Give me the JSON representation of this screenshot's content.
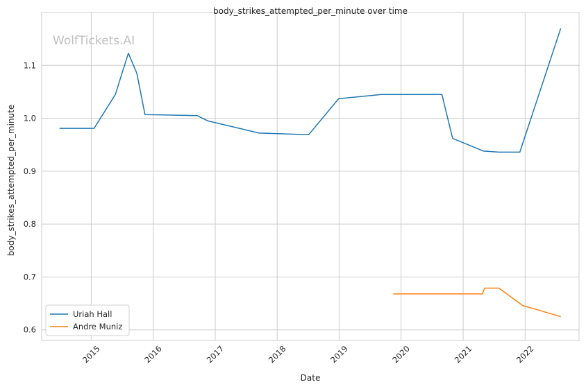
{
  "chart_data": {
    "type": "line",
    "title": "body_strikes_attempted_per_minute over time",
    "xlabel": "Date",
    "ylabel": "body_strikes_attempted_per_minute",
    "watermark": "WolfTickets.AI",
    "grid": true,
    "legend_position": "lower-left",
    "xlim": [
      "2014-03-15",
      "2022-11-15"
    ],
    "ylim": [
      0.58,
      1.2
    ],
    "x_ticks": [
      {
        "date": "2015-01-01",
        "label": "2015"
      },
      {
        "date": "2016-01-01",
        "label": "2016"
      },
      {
        "date": "2017-01-01",
        "label": "2017"
      },
      {
        "date": "2018-01-01",
        "label": "2018"
      },
      {
        "date": "2019-01-01",
        "label": "2019"
      },
      {
        "date": "2020-01-01",
        "label": "2020"
      },
      {
        "date": "2021-01-01",
        "label": "2021"
      },
      {
        "date": "2022-01-01",
        "label": "2022"
      }
    ],
    "y_ticks": [
      {
        "value": 0.6,
        "label": "0.6"
      },
      {
        "value": 0.7,
        "label": "0.7"
      },
      {
        "value": 0.8,
        "label": "0.8"
      },
      {
        "value": 0.9,
        "label": "0.9"
      },
      {
        "value": 1.0,
        "label": "1.0"
      },
      {
        "value": 1.1,
        "label": "1.1"
      }
    ],
    "series": [
      {
        "name": "Uriah Hall",
        "color": "#1f77b4",
        "points": [
          {
            "x": "2014-06-28",
            "y": 0.981
          },
          {
            "x": "2015-01-18",
            "y": 0.981
          },
          {
            "x": "2015-05-23",
            "y": 1.045
          },
          {
            "x": "2015-08-08",
            "y": 1.123
          },
          {
            "x": "2015-09-27",
            "y": 1.085
          },
          {
            "x": "2015-11-14",
            "y": 1.007
          },
          {
            "x": "2016-09-17",
            "y": 1.005
          },
          {
            "x": "2016-11-19",
            "y": 0.995
          },
          {
            "x": "2017-09-16",
            "y": 0.972
          },
          {
            "x": "2018-07-06",
            "y": 0.969
          },
          {
            "x": "2018-12-29",
            "y": 1.037
          },
          {
            "x": "2019-09-07",
            "y": 1.045
          },
          {
            "x": "2020-08-29",
            "y": 1.045
          },
          {
            "x": "2020-10-31",
            "y": 0.962
          },
          {
            "x": "2021-05-01",
            "y": 0.938
          },
          {
            "x": "2021-07-31",
            "y": 0.936
          },
          {
            "x": "2021-12-01",
            "y": 0.936
          },
          {
            "x": "2022-07-30",
            "y": 1.17
          }
        ]
      },
      {
        "name": "Andre Muniz",
        "color": "#ff7f0e",
        "points": [
          {
            "x": "2019-11-16",
            "y": 0.668
          },
          {
            "x": "2021-04-24",
            "y": 0.668
          },
          {
            "x": "2021-05-08",
            "y": 0.679
          },
          {
            "x": "2021-07-31",
            "y": 0.679
          },
          {
            "x": "2021-12-18",
            "y": 0.646
          },
          {
            "x": "2022-07-30",
            "y": 0.625
          }
        ]
      }
    ]
  }
}
